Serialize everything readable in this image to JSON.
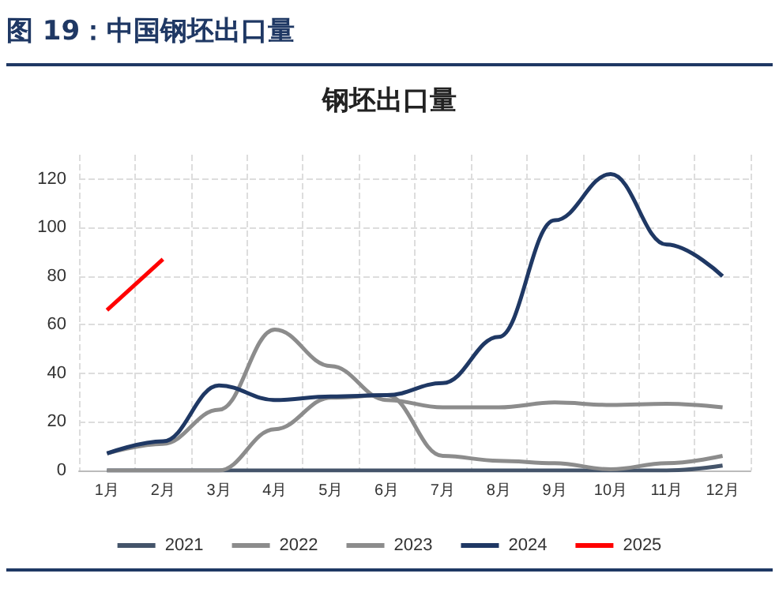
{
  "chart_data": {
    "type": "line",
    "title": "图 19：中国钢坯出口量",
    "subtitle": "钢坯出口量",
    "categories": [
      "1月",
      "2月",
      "3月",
      "4月",
      "5月",
      "6月",
      "7月",
      "8月",
      "9月",
      "10月",
      "11月",
      "12月"
    ],
    "series": [
      {
        "name": "2021",
        "color": "#44546a",
        "values": [
          0,
          0,
          0,
          0,
          0,
          0,
          0,
          0,
          0,
          0,
          0,
          2
        ]
      },
      {
        "name": "2022",
        "color": "#8c8c8c",
        "values": [
          0,
          0,
          0,
          17,
          30,
          31,
          6,
          4,
          3,
          0.5,
          3,
          6
        ]
      },
      {
        "name": "2023",
        "color": "#8c8c8c",
        "values": [
          7,
          11,
          25,
          58,
          43,
          29,
          26,
          26,
          28,
          27,
          27.5,
          26
        ]
      },
      {
        "name": "2024",
        "color": "#1f3864",
        "values": [
          7,
          12,
          35,
          29,
          30.5,
          31,
          36,
          55,
          103,
          122,
          93,
          80
        ]
      },
      {
        "name": "2025",
        "color": "#ff0000",
        "values": [
          66,
          87,
          null,
          null,
          null,
          null,
          null,
          null,
          null,
          null,
          null,
          null
        ]
      }
    ],
    "ylim": [
      0,
      130
    ],
    "yticks": [
      0,
      20,
      40,
      60,
      80,
      100,
      120
    ],
    "grid": true,
    "legend": "bottom",
    "marker": "none",
    "line_style": "solid"
  }
}
